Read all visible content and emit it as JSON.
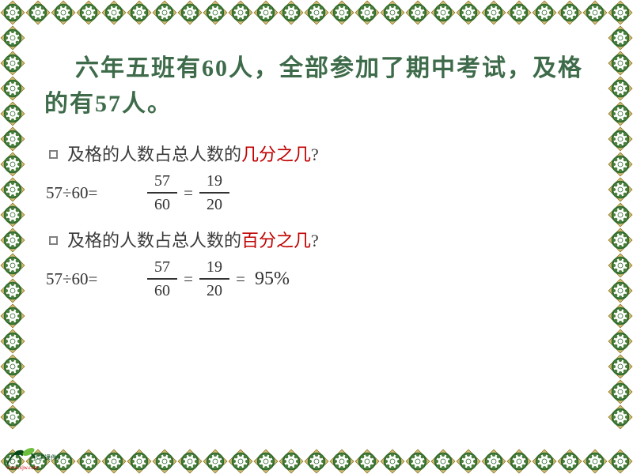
{
  "border": {
    "tile": 32,
    "bg": "#ffffff",
    "outer": "#7a5a00",
    "mid": "#cdbf7a",
    "ring": "#2e6b2e",
    "dots": "#4a7f3a",
    "center": "#ffffff"
  },
  "title": {
    "pre": "六年五班有",
    "n1": "60",
    "mid": "人，全部参加了期中考试，及格的有",
    "n2": "57",
    "post": "人。",
    "font_size": 30,
    "color": "#3e6b4a"
  },
  "q1": {
    "text_pre": "及格的人数占总人数的",
    "hl": "几分之几",
    "post": "?",
    "hl_color": "#c00000"
  },
  "q2": {
    "text_pre": "及格的人数占总人数的",
    "hl": "百分之几",
    "post": "?",
    "hl_color": "#c00000"
  },
  "eq1": {
    "lhs": "57÷60=",
    "f1n": "57",
    "f1d": "60",
    "op": "=",
    "f2n": "19",
    "f2d": "20"
  },
  "eq2": {
    "lhs": "57÷60=",
    "f1n": "57",
    "f1d": "60",
    "op": "=",
    "f2n": "19",
    "f2d": "20",
    "eq2": "=",
    "pct": "95%"
  },
  "logo_colors": {
    "dark": "#0a4a1a",
    "light": "#6fbf3f",
    "text": "#c00000"
  }
}
